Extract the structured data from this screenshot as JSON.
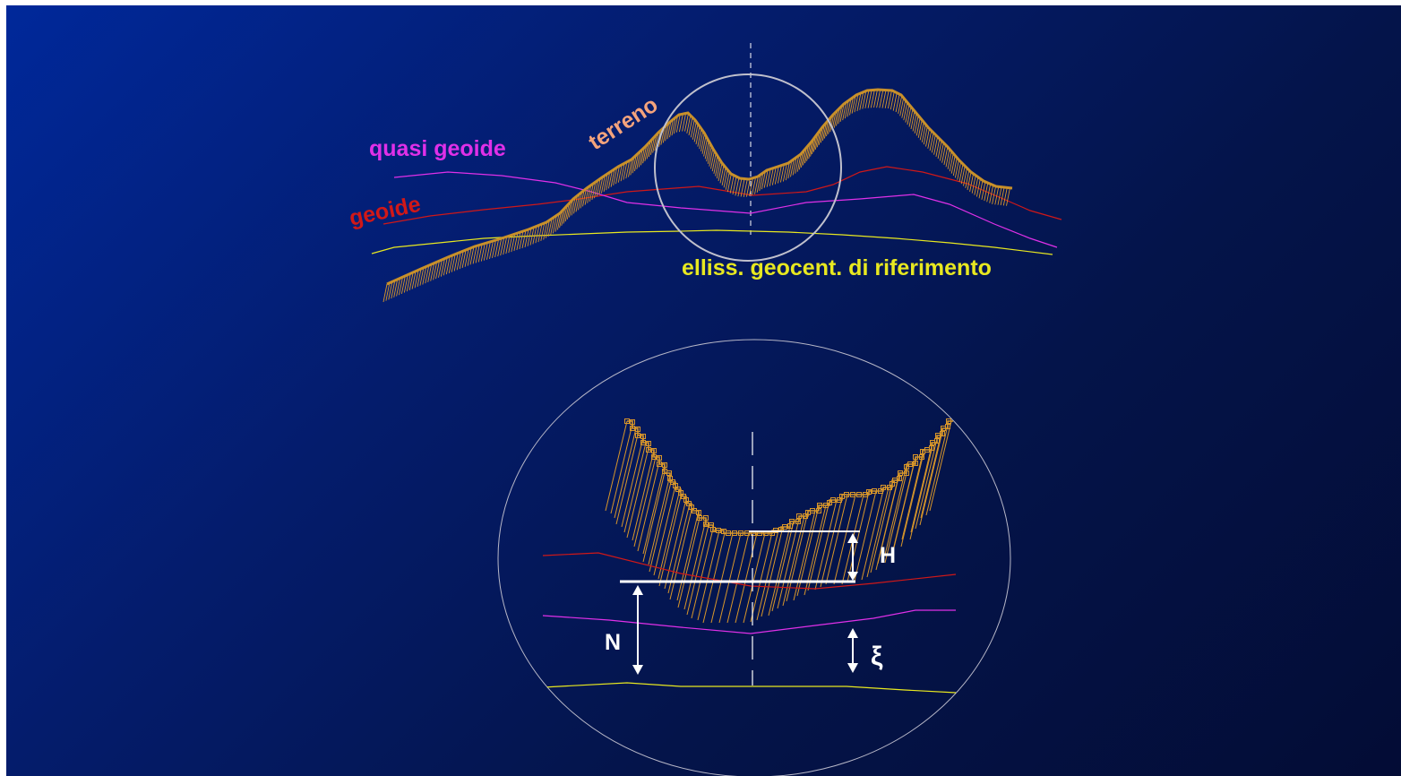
{
  "labels": {
    "terreno": "terreno",
    "quasi_geoide": "quasi geoide",
    "geoide": "geoide",
    "ellissoide": "elliss. geocent. di riferimento",
    "H": "H",
    "N": "N",
    "xi": "ξ"
  },
  "colors": {
    "terreno_label": "#f4a37c",
    "terrain_line": "#c8902a",
    "hatch": "#d8962a",
    "quasi_geoide": "#e030e8",
    "geoide": "#d01818",
    "ellissoide": "#e8e820",
    "white": "#ffffff",
    "circle": "#b8b8c8"
  }
}
